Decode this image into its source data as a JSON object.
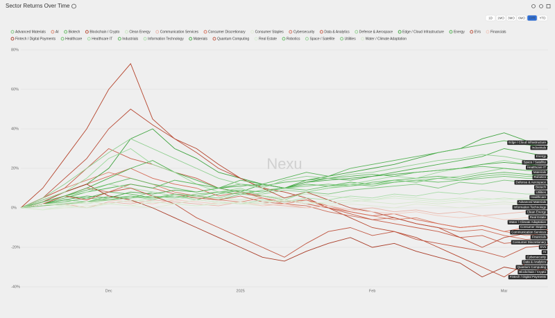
{
  "chart_data": {
    "type": "line",
    "title": "Sector Returns Over Time",
    "watermark": "Nexu",
    "ranges": [
      "1D",
      "1MO",
      "3MO",
      "6MO",
      "1YR",
      "YTD"
    ],
    "selected_range": 4,
    "categories": [
      null,
      null,
      null,
      null,
      "Dec",
      null,
      null,
      null,
      null,
      null,
      "2025",
      null,
      null,
      null,
      null,
      null,
      "Feb",
      null,
      null,
      null,
      null,
      null,
      "Mar",
      null,
      null
    ],
    "ylim": [
      -40,
      80
    ],
    "yticks": [
      {
        "value": -40,
        "label": "-40%"
      },
      {
        "value": -20,
        "label": "-20%"
      },
      {
        "value": 0,
        "label": "0%"
      },
      {
        "value": 20,
        "label": "20%"
      },
      {
        "value": 40,
        "label": "40%"
      },
      {
        "value": 60,
        "label": "60%"
      },
      {
        "value": 80,
        "label": "80%"
      }
    ],
    "grid": true,
    "series": [
      {
        "name": "Advanced Materials",
        "color": "#7cc47c",
        "values": [
          0,
          2,
          4,
          3,
          6,
          5,
          8,
          6,
          5,
          4,
          7,
          6,
          5,
          8,
          7,
          9,
          10,
          11,
          12,
          10,
          13,
          12,
          14,
          13,
          12
        ]
      },
      {
        "name": "AI",
        "color": "#d9826a",
        "values": [
          0,
          5,
          10,
          14,
          18,
          15,
          12,
          8,
          6,
          4,
          3,
          5,
          2,
          4,
          1,
          -2,
          -4,
          -6,
          -5,
          -8,
          -10,
          -9,
          -12,
          -14,
          -13
        ]
      },
      {
        "name": "Biotech",
        "color": "#5cb85c",
        "values": [
          0,
          3,
          6,
          5,
          8,
          7,
          5,
          6,
          4,
          7,
          9,
          8,
          10,
          12,
          11,
          13,
          12,
          14,
          15,
          16,
          15,
          17,
          18,
          17,
          16
        ]
      },
      {
        "name": "Blockchain / Crypto",
        "color": "#b5452d",
        "values": [
          0,
          10,
          25,
          40,
          60,
          73,
          45,
          35,
          30,
          22,
          15,
          10,
          8,
          5,
          0,
          -5,
          -10,
          -12,
          -15,
          -20,
          -25,
          -30,
          -35,
          -28,
          -27
        ]
      },
      {
        "name": "Clean Energy",
        "color": "#c8e6c0",
        "values": [
          0,
          1,
          3,
          2,
          4,
          3,
          5,
          4,
          6,
          5,
          4,
          6,
          5,
          7,
          6,
          5,
          4,
          6,
          5,
          4,
          5,
          4,
          5,
          4,
          4
        ]
      },
      {
        "name": "Communication Services",
        "color": "#e8b4a8",
        "values": [
          0,
          1,
          2,
          0,
          3,
          2,
          4,
          3,
          2,
          1,
          3,
          2,
          1,
          0,
          1,
          -1,
          0,
          -2,
          -1,
          -3,
          -2,
          -4,
          -3,
          -2,
          -3
        ]
      },
      {
        "name": "Consumer Discretionary",
        "color": "#d46a55",
        "values": [
          0,
          4,
          8,
          12,
          16,
          20,
          15,
          12,
          10,
          6,
          8,
          5,
          3,
          4,
          0,
          -2,
          -4,
          -3,
          -6,
          -8,
          -10,
          -9,
          -12,
          -10,
          -11
        ]
      },
      {
        "name": "Consumer Staples",
        "color": "#dfe9d4",
        "values": [
          0,
          -1,
          0,
          1,
          2,
          1,
          0,
          2,
          1,
          3,
          2,
          1,
          2,
          0,
          1,
          2,
          1,
          0,
          2,
          1,
          0,
          1,
          2,
          1,
          1
        ]
      },
      {
        "name": "Cybersecurity",
        "color": "#cc6b57",
        "values": [
          0,
          3,
          6,
          10,
          8,
          12,
          10,
          7,
          5,
          4,
          6,
          3,
          2,
          1,
          -2,
          -4,
          -6,
          -5,
          -8,
          -10,
          -12,
          -11,
          -14,
          -16,
          -15
        ]
      },
      {
        "name": "Data & Analytics",
        "color": "#c55a45",
        "values": [
          0,
          5,
          10,
          20,
          30,
          25,
          22,
          18,
          15,
          10,
          8,
          6,
          4,
          2,
          0,
          -3,
          -6,
          -8,
          -10,
          -12,
          -15,
          -14,
          -18,
          -17,
          -18
        ]
      },
      {
        "name": "Defense & Aerospace",
        "color": "#8fd08f",
        "values": [
          0,
          2,
          4,
          3,
          5,
          6,
          4,
          7,
          6,
          5,
          8,
          7,
          9,
          8,
          10,
          11,
          12,
          13,
          14,
          15,
          16,
          18,
          20,
          19,
          18
        ]
      },
      {
        "name": "Edge / Cloud Infrastructure",
        "color": "#3fa33f",
        "values": [
          0,
          4,
          8,
          12,
          20,
          35,
          40,
          30,
          25,
          18,
          15,
          12,
          10,
          14,
          16,
          18,
          20,
          22,
          25,
          28,
          30,
          35,
          38,
          34,
          33
        ]
      },
      {
        "name": "Energy",
        "color": "#4cae4c",
        "values": [
          0,
          3,
          6,
          10,
          15,
          20,
          24,
          18,
          14,
          10,
          8,
          12,
          10,
          13,
          15,
          14,
          16,
          18,
          20,
          22,
          24,
          26,
          30,
          28,
          26
        ]
      },
      {
        "name": "EVs",
        "color": "#b84a35",
        "values": [
          0,
          5,
          15,
          25,
          40,
          50,
          42,
          35,
          28,
          20,
          15,
          10,
          5,
          8,
          4,
          0,
          -2,
          -5,
          -8,
          -10,
          -15,
          -20,
          -15,
          -13,
          -12
        ]
      },
      {
        "name": "Financials",
        "color": "#f0c8bc",
        "values": [
          0,
          1,
          2,
          3,
          4,
          3,
          2,
          4,
          3,
          2,
          3,
          1,
          2,
          0,
          1,
          -1,
          -2,
          -3,
          -2,
          -4,
          -5,
          -4,
          -6,
          -5,
          -6
        ]
      },
      {
        "name": "Fintech / Digital Payments",
        "color": "#a83a25",
        "values": [
          0,
          3,
          8,
          12,
          6,
          4,
          0,
          -5,
          -10,
          -15,
          -20,
          -25,
          -27,
          -22,
          -18,
          -15,
          -20,
          -18,
          -22,
          -25,
          -28,
          -35,
          -30,
          -32,
          -31
        ]
      },
      {
        "name": "Healthcare",
        "color": "#6bbf6b",
        "values": [
          0,
          2,
          3,
          5,
          4,
          6,
          5,
          7,
          6,
          8,
          9,
          8,
          10,
          9,
          11,
          12,
          11,
          13,
          14,
          13,
          14,
          15,
          16,
          15,
          15
        ]
      },
      {
        "name": "Healthcare IT",
        "color": "#9bd89b",
        "values": [
          0,
          4,
          8,
          15,
          25,
          30,
          22,
          18,
          12,
          8,
          10,
          6,
          4,
          8,
          10,
          12,
          14,
          16,
          15,
          18,
          20,
          22,
          24,
          22,
          21
        ]
      },
      {
        "name": "Industrials",
        "color": "#55b355",
        "values": [
          0,
          2,
          5,
          8,
          10,
          12,
          10,
          14,
          12,
          10,
          14,
          12,
          15,
          18,
          16,
          20,
          22,
          24,
          26,
          28,
          30,
          32,
          34,
          32,
          31
        ]
      },
      {
        "name": "Information Technology",
        "color": "#a8dca8",
        "values": [
          0,
          3,
          6,
          8,
          12,
          10,
          8,
          6,
          4,
          3,
          2,
          4,
          3,
          5,
          4,
          6,
          5,
          7,
          6,
          8,
          7,
          9,
          8,
          7,
          7
        ]
      },
      {
        "name": "Materials",
        "color": "#48a848",
        "values": [
          0,
          2,
          4,
          6,
          5,
          8,
          7,
          9,
          8,
          10,
          11,
          12,
          10,
          13,
          14,
          15,
          16,
          17,
          18,
          19,
          20,
          22,
          23,
          22,
          21
        ]
      },
      {
        "name": "Quantum Computing",
        "color": "#bf5540",
        "values": [
          0,
          2,
          6,
          4,
          8,
          10,
          6,
          2,
          -5,
          -10,
          -15,
          -20,
          -25,
          -18,
          -12,
          -10,
          -14,
          -12,
          -16,
          -18,
          -20,
          -22,
          -25,
          -20,
          -19
        ]
      },
      {
        "name": "Real Estate",
        "color": "#d5ecd0",
        "values": [
          0,
          -1,
          1,
          0,
          2,
          1,
          3,
          2,
          1,
          2,
          3,
          2,
          4,
          3,
          2,
          3,
          4,
          5,
          4,
          3,
          4,
          5,
          4,
          5,
          4
        ]
      },
      {
        "name": "Robotics",
        "color": "#5fb95f",
        "values": [
          0,
          3,
          6,
          9,
          12,
          15,
          12,
          10,
          8,
          10,
          12,
          11,
          13,
          14,
          15,
          16,
          17,
          16,
          18,
          19,
          20,
          21,
          20,
          19,
          19
        ]
      },
      {
        "name": "Space / Satellite",
        "color": "#8fce8f",
        "values": [
          0,
          5,
          12,
          20,
          28,
          35,
          30,
          25,
          20,
          15,
          12,
          10,
          14,
          16,
          15,
          17,
          18,
          20,
          22,
          24,
          25,
          27,
          26,
          24,
          23
        ]
      },
      {
        "name": "Utilities",
        "color": "#74c474",
        "values": [
          0,
          1,
          2,
          3,
          4,
          5,
          6,
          5,
          7,
          8,
          7,
          9,
          10,
          11,
          12,
          11,
          13,
          14,
          13,
          15,
          14,
          16,
          17,
          16,
          16
        ]
      },
      {
        "name": "Water / Climate Adaptation",
        "color": "#d6e8cc",
        "values": [
          0,
          2,
          1,
          3,
          2,
          4,
          3,
          2,
          4,
          3,
          2,
          3,
          4,
          2,
          3,
          4,
          3,
          2,
          3,
          2,
          3,
          2,
          3,
          2,
          2
        ]
      }
    ]
  }
}
